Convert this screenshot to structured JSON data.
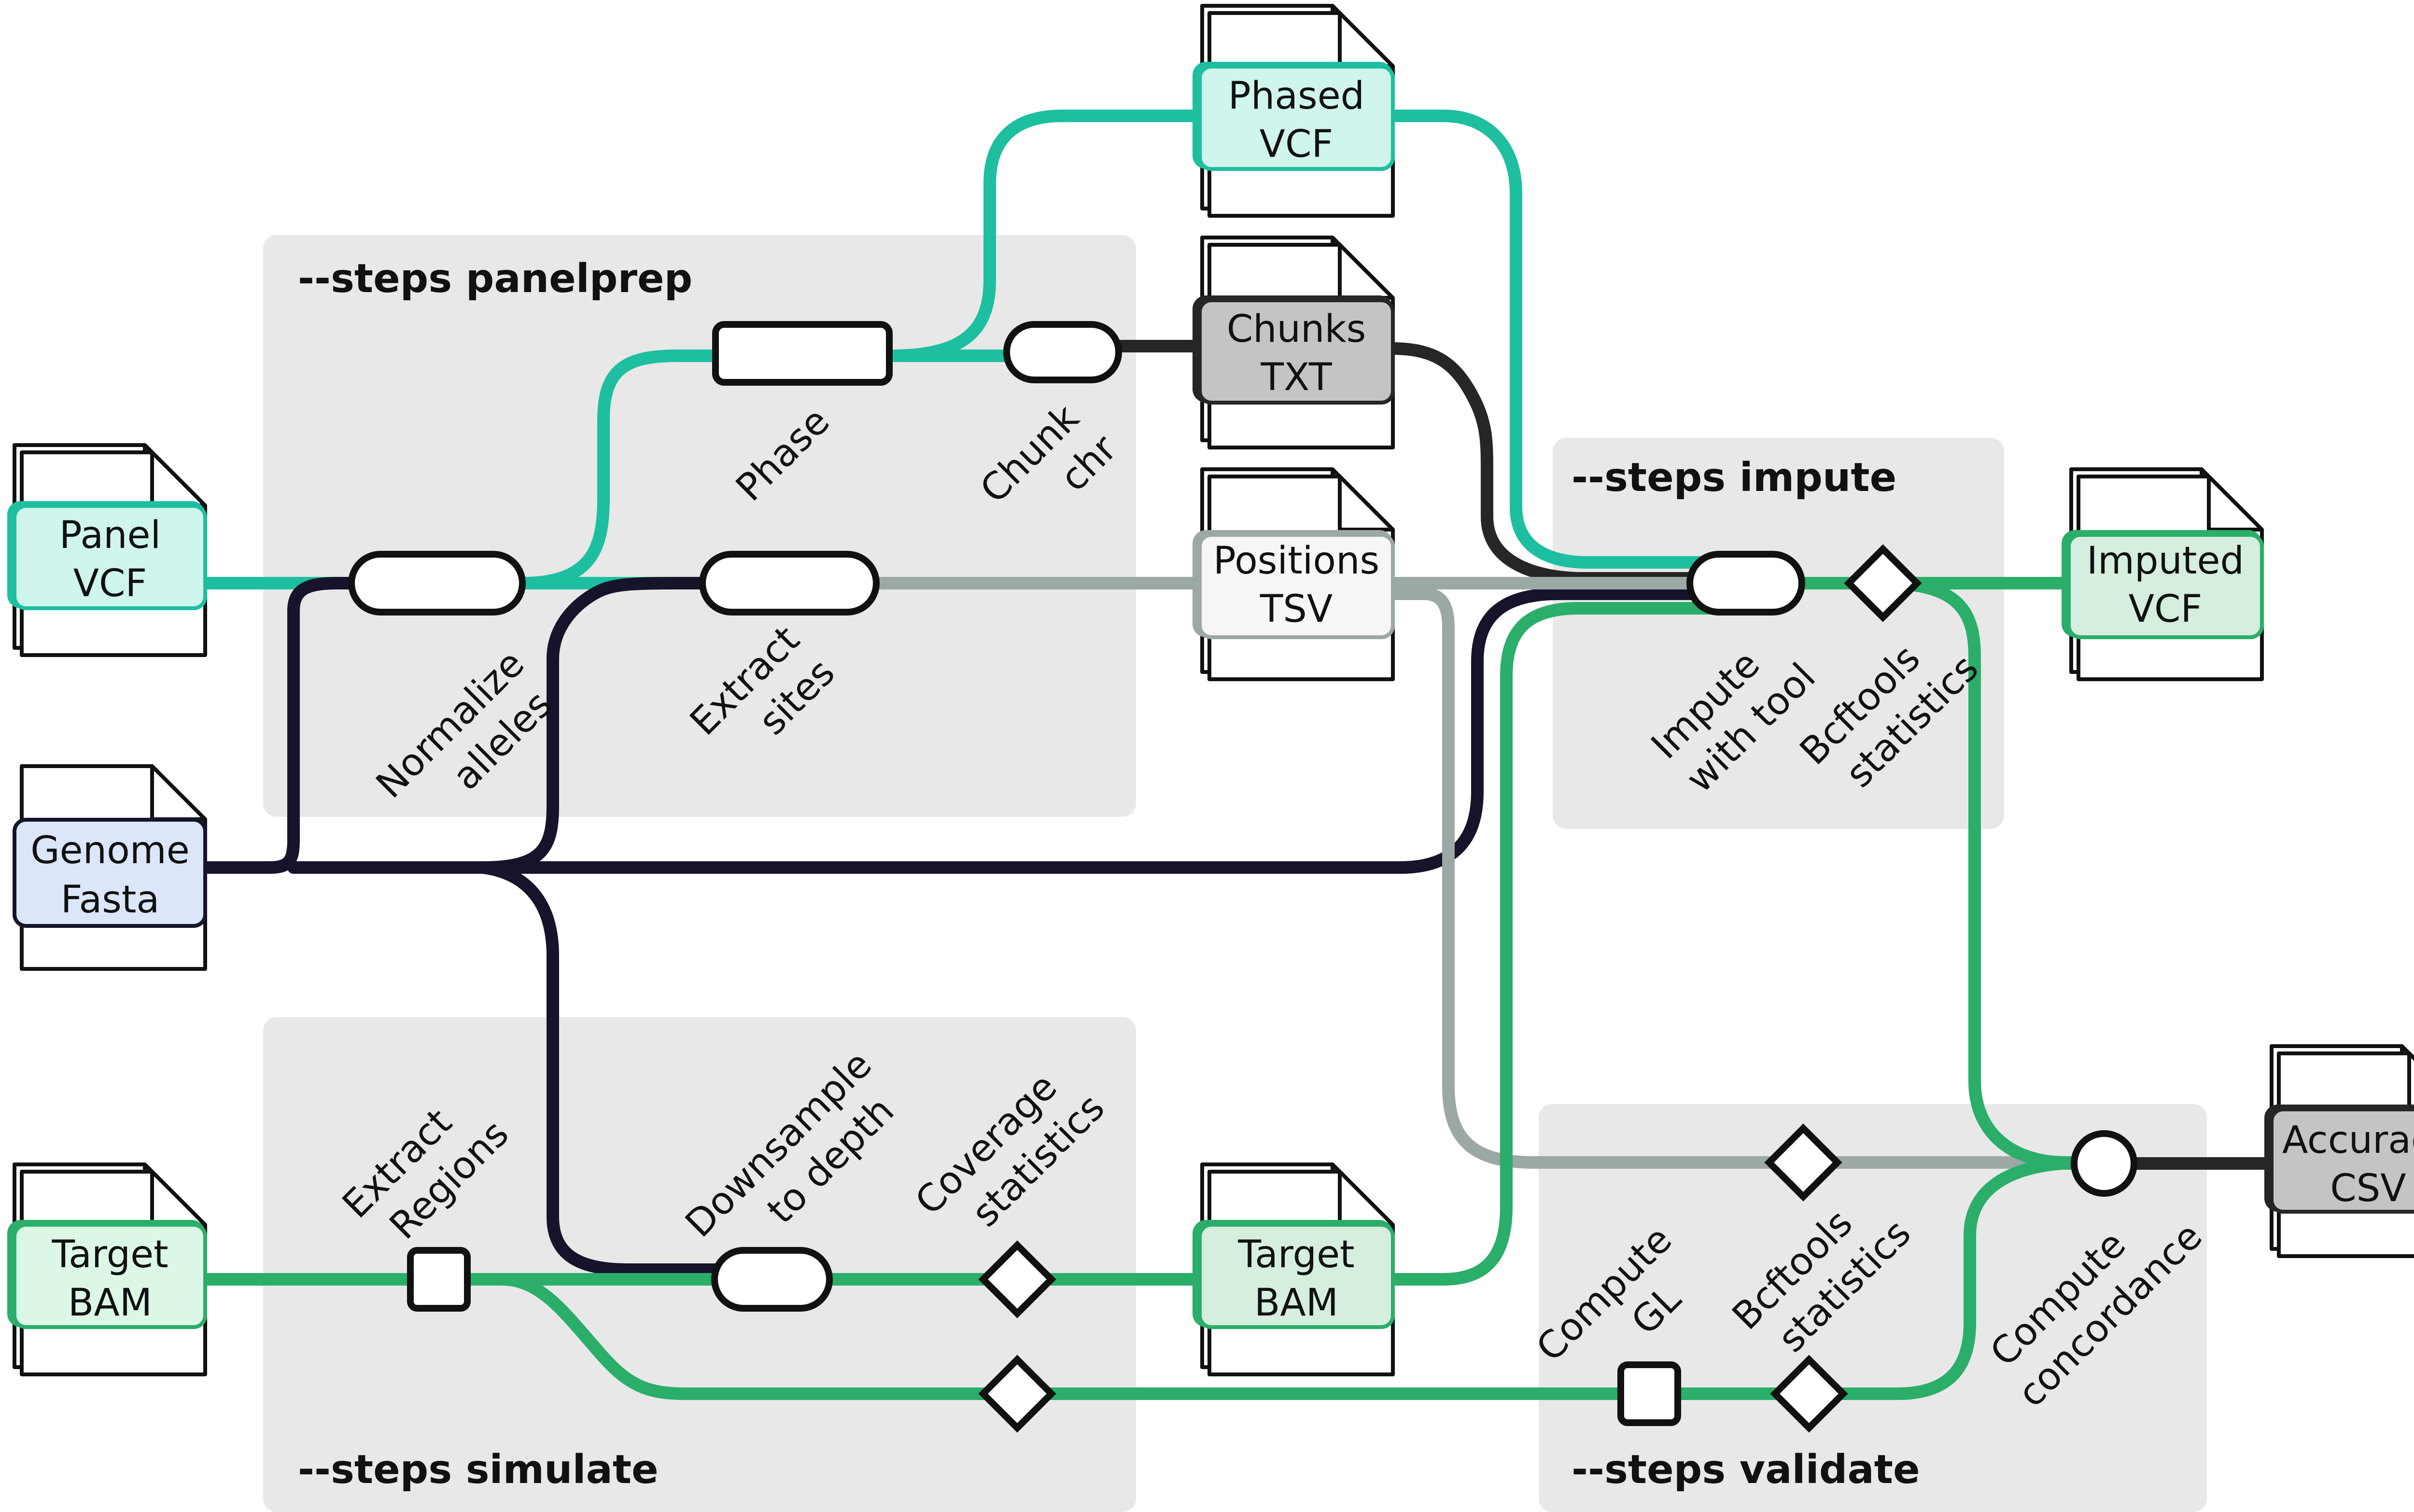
{
  "sections": {
    "panelprep": "--steps panelprep",
    "impute": "--steps impute",
    "simulate": "--steps simulate",
    "validate": "--steps validate"
  },
  "files": {
    "panel_vcf": [
      "Panel",
      "VCF"
    ],
    "genome_fasta": [
      "Genome",
      "Fasta"
    ],
    "target_bam_in": [
      "Target",
      "BAM"
    ],
    "phased_vcf": [
      "Phased",
      "VCF"
    ],
    "chunks_txt": [
      "Chunks",
      "TXT"
    ],
    "positions_tsv": [
      "Positions",
      "TSV"
    ],
    "target_bam_out": [
      "Target",
      "BAM"
    ],
    "imputed_vcf": [
      "Imputed",
      "VCF"
    ],
    "accuracy_csv": [
      "Accuracy",
      "CSV"
    ]
  },
  "steps": {
    "normalize": [
      "Normalize",
      "alleles"
    ],
    "phase": [
      "Phase"
    ],
    "chunk": [
      "Chunk",
      "chr"
    ],
    "extract_sites": [
      "Extract",
      "sites"
    ],
    "impute_tool": [
      "Impute",
      "with tool"
    ],
    "bcftools_impute": [
      "Bcftools",
      "statistics"
    ],
    "extract_regions": [
      "Extract",
      "Regions"
    ],
    "downsample": [
      "Downsample",
      "to depth"
    ],
    "coverage": [
      "Coverage",
      "statistics"
    ],
    "compute_gl": [
      "Compute",
      "GL"
    ],
    "bcftools_validate": [
      "Bcftools",
      "statistics"
    ],
    "concordance": [
      "Compute",
      "concordance"
    ]
  },
  "colors": {
    "teal": "#1dbfa0",
    "navy": "#16142a",
    "black": "#262626",
    "grey": "#9ca8a6",
    "green": "#2aae6a",
    "section_bg": "#e8e8e8"
  }
}
